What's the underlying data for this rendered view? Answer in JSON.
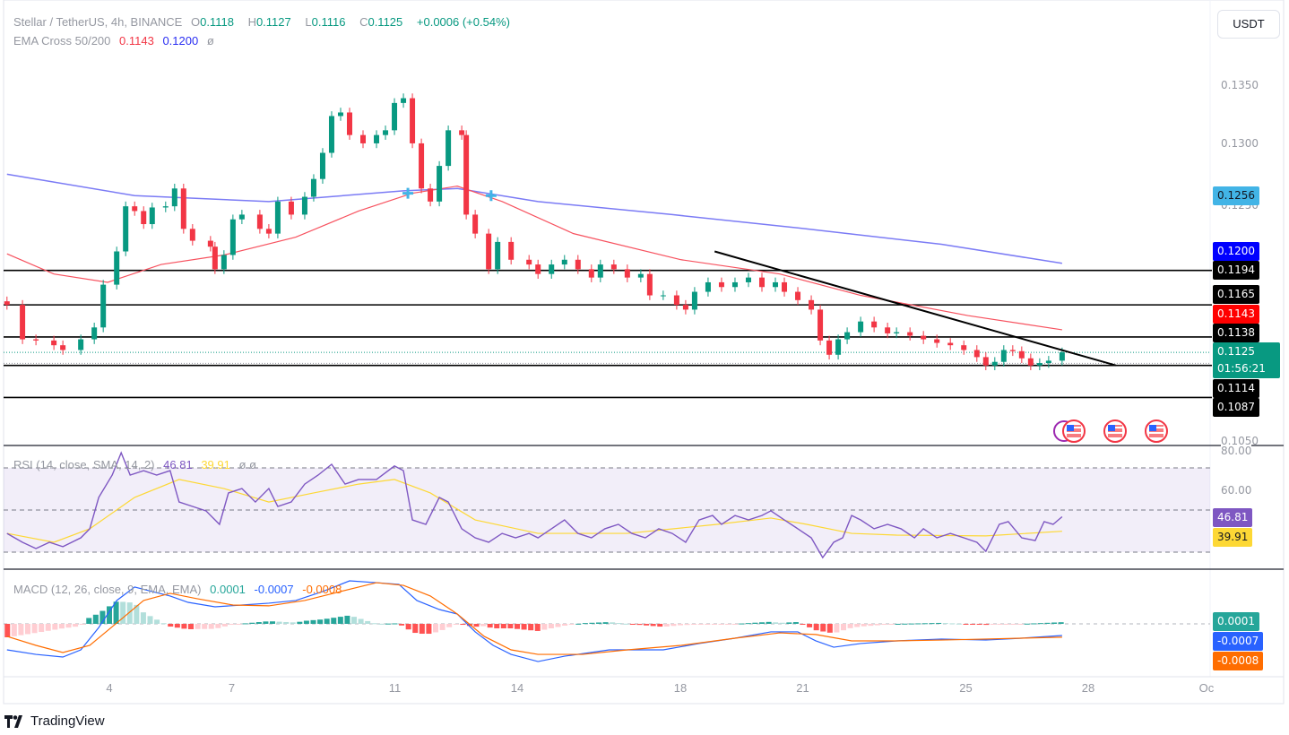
{
  "header": {
    "symbol": "Stellar / TetherUS, 4h, BINANCE",
    "o_label": "O",
    "o": "0.1118",
    "h_label": "H",
    "h": "0.1127",
    "l_label": "L",
    "l": "0.1116",
    "c_label": "C",
    "c": "0.1125",
    "change": "+0.0006 (+0.54%)"
  },
  "ema_legend": {
    "label": "EMA Cross 50/200",
    "ema50": "0.1143",
    "ema200": "0.1200",
    "extra": "ø"
  },
  "rsi_legend": {
    "label": "RSI (14, close, SMA, 14, 2)",
    "rsi": "46.81",
    "sma": "39.91",
    "extra": "ø ø"
  },
  "macd_legend": {
    "label": "MACD (12, 26, close, 9, EMA, EMA)",
    "hist": "0.0001",
    "macd": "-0.0007",
    "signal": "-0.0008"
  },
  "currency_button": "USDT",
  "footer": {
    "brand": "TradingView"
  },
  "price_axis": [
    "0.1350",
    "0.1300",
    "0.1250",
    "0.1050"
  ],
  "rsi_axis": [
    "80.00",
    "60.00"
  ],
  "time_axis": [
    {
      "label": "4",
      "day": 4
    },
    {
      "label": "7",
      "day": 7
    },
    {
      "label": "11",
      "day": 11
    },
    {
      "label": "14",
      "day": 14
    },
    {
      "label": "18",
      "day": 18
    },
    {
      "label": "21",
      "day": 21
    },
    {
      "label": "25",
      "day": 25
    },
    {
      "label": "28",
      "day": 28
    },
    {
      "label": "Oc",
      "day": 30.9
    }
  ],
  "badges": {
    "crosshair": "0.1256",
    "ema200": "0.1200",
    "l1": "0.1194",
    "l2": "0.1165",
    "ema50": "0.1143",
    "l3": "0.1138",
    "last": "0.1125",
    "countdown": "01:56:21",
    "l4": "0.1114",
    "l5": "0.1087",
    "rsi": "46.81",
    "rsi_sma": "39.91",
    "hist": "0.0001",
    "macd": "-0.0007",
    "signal": "-0.0008"
  },
  "colors": {
    "up": "#089981",
    "down": "#f23645",
    "ema50": "#f7525f",
    "ema200": "#7b7bf5",
    "rsi": "#7e57c2",
    "rsi_sma": "#fdd835",
    "macd": "#2962ff",
    "signal": "#ff6d00",
    "crosshair": "#42b4e6"
  },
  "icons": [
    "us-flag-event-icon",
    "us-flag-event-icon",
    "us-flag-event-icon",
    "earnings-event-icon"
  ],
  "chart_data": {
    "type": "candlestick",
    "interval": "4h",
    "x_unit": "day of month",
    "ylim": [
      0.1035,
      0.1375
    ],
    "closes": [
      [
        1.49,
        0.1165
      ],
      [
        1.87,
        0.1136
      ],
      [
        2.2,
        0.1135
      ],
      [
        2.64,
        0.1131
      ],
      [
        2.86,
        0.1127
      ],
      [
        3.3,
        0.1136
      ],
      [
        3.63,
        0.1146
      ],
      [
        3.85,
        0.1182
      ],
      [
        4.18,
        0.121
      ],
      [
        4.4,
        0.1248
      ],
      [
        4.62,
        0.1244
      ],
      [
        4.84,
        0.1233
      ],
      [
        5.05,
        0.1247
      ],
      [
        5.38,
        0.1248
      ],
      [
        5.6,
        0.1263
      ],
      [
        5.82,
        0.1229
      ],
      [
        6.04,
        0.1219
      ],
      [
        6.48,
        0.1214
      ],
      [
        6.59,
        0.1195
      ],
      [
        6.81,
        0.1207
      ],
      [
        7.03,
        0.1237
      ],
      [
        7.25,
        0.1241
      ],
      [
        7.69,
        0.1229
      ],
      [
        7.91,
        0.1225
      ],
      [
        8.13,
        0.1252
      ],
      [
        8.46,
        0.1241
      ],
      [
        8.79,
        0.1256
      ],
      [
        9.01,
        0.1271
      ],
      [
        9.23,
        0.1293
      ],
      [
        9.45,
        0.1324
      ],
      [
        9.67,
        0.1327
      ],
      [
        9.89,
        0.1308
      ],
      [
        10.22,
        0.1301
      ],
      [
        10.55,
        0.1308
      ],
      [
        10.77,
        0.1312
      ],
      [
        10.99,
        0.1335
      ],
      [
        11.21,
        0.1339
      ],
      [
        11.43,
        0.1301
      ],
      [
        11.65,
        0.1263
      ],
      [
        11.87,
        0.1252
      ],
      [
        12.09,
        0.1282
      ],
      [
        12.31,
        0.1312
      ],
      [
        12.64,
        0.1308
      ],
      [
        12.75,
        0.1241
      ],
      [
        12.97,
        0.1225
      ],
      [
        13.3,
        0.1195
      ],
      [
        13.52,
        0.1218
      ],
      [
        13.85,
        0.1203
      ],
      [
        14.29,
        0.1199
      ],
      [
        14.51,
        0.1191
      ],
      [
        14.84,
        0.1199
      ],
      [
        15.16,
        0.1203
      ],
      [
        15.49,
        0.1195
      ],
      [
        15.82,
        0.1188
      ],
      [
        16.04,
        0.1199
      ],
      [
        16.37,
        0.1195
      ],
      [
        16.7,
        0.1188
      ],
      [
        17.03,
        0.1191
      ],
      [
        17.25,
        0.1173
      ],
      [
        17.58,
        0.1173
      ],
      [
        17.91,
        0.1165
      ],
      [
        18.13,
        0.1161
      ],
      [
        18.35,
        0.1176
      ],
      [
        18.68,
        0.1184
      ],
      [
        19.01,
        0.118
      ],
      [
        19.34,
        0.1184
      ],
      [
        19.67,
        0.1188
      ],
      [
        20,
        0.118
      ],
      [
        20.33,
        0.1184
      ],
      [
        20.55,
        0.1176
      ],
      [
        20.88,
        0.1169
      ],
      [
        21.21,
        0.1161
      ],
      [
        21.43,
        0.1135
      ],
      [
        21.65,
        0.1123
      ],
      [
        21.87,
        0.1136
      ],
      [
        22.09,
        0.1142
      ],
      [
        22.42,
        0.1151
      ],
      [
        22.75,
        0.1146
      ],
      [
        23.08,
        0.1141
      ],
      [
        23.3,
        0.1142
      ],
      [
        23.63,
        0.1139
      ],
      [
        23.96,
        0.1136
      ],
      [
        24.29,
        0.1133
      ],
      [
        24.62,
        0.1131
      ],
      [
        24.95,
        0.1127
      ],
      [
        25.27,
        0.1121
      ],
      [
        25.49,
        0.1114
      ],
      [
        25.71,
        0.1117
      ],
      [
        25.93,
        0.1127
      ],
      [
        26.15,
        0.1126
      ],
      [
        26.37,
        0.112
      ],
      [
        26.59,
        0.1114
      ],
      [
        26.81,
        0.1116
      ],
      [
        27.03,
        0.1118
      ],
      [
        27.36,
        0.1125
      ]
    ],
    "ema50": [
      [
        1.49,
        0.1208
      ],
      [
        2.64,
        0.1191
      ],
      [
        3.96,
        0.1184
      ],
      [
        5.27,
        0.1199
      ],
      [
        6.81,
        0.1207
      ],
      [
        8.57,
        0.1222
      ],
      [
        10.11,
        0.1244
      ],
      [
        11.43,
        0.1259
      ],
      [
        12.53,
        0.1265
      ],
      [
        13.63,
        0.1252
      ],
      [
        15.38,
        0.1225
      ],
      [
        18.02,
        0.1203
      ],
      [
        20.44,
        0.1191
      ],
      [
        22.42,
        0.1173
      ],
      [
        25.05,
        0.1156
      ],
      [
        27.36,
        0.1144
      ]
    ],
    "ema200": [
      [
        1.49,
        0.1275
      ],
      [
        4.62,
        0.1257
      ],
      [
        7.91,
        0.1252
      ],
      [
        11.21,
        0.1261
      ],
      [
        12.53,
        0.1263
      ],
      [
        14.51,
        0.1252
      ],
      [
        17.8,
        0.1241
      ],
      [
        21.1,
        0.1229
      ],
      [
        24.4,
        0.1216
      ],
      [
        27.36,
        0.12
      ]
    ],
    "cross_markers": [
      [
        11.32,
        0.1259
      ],
      [
        13.36,
        0.1257
      ]
    ],
    "horizontal_levels": [
      0.1194,
      0.1165,
      0.1138,
      0.1114,
      0.1087
    ],
    "trendline": [
      [
        18.84,
        0.121
      ],
      [
        28.68,
        0.1114
      ]
    ],
    "rsi": {
      "ylim": [
        20,
        82
      ],
      "bands": [
        70,
        50,
        30
      ],
      "values": [
        [
          1.49,
          38.9
        ],
        [
          1.87,
          34.7
        ],
        [
          2.2,
          31.7
        ],
        [
          2.53,
          34.7
        ],
        [
          2.86,
          32.6
        ],
        [
          3.3,
          36.8
        ],
        [
          3.52,
          41.1
        ],
        [
          3.74,
          56
        ],
        [
          4.07,
          66.6
        ],
        [
          4.29,
          77.2
        ],
        [
          4.51,
          66.6
        ],
        [
          4.84,
          68.7
        ],
        [
          5.16,
          66.6
        ],
        [
          5.49,
          68.7
        ],
        [
          5.71,
          53.8
        ],
        [
          6.04,
          51.7
        ],
        [
          6.37,
          49.6
        ],
        [
          6.7,
          43.2
        ],
        [
          6.92,
          58.1
        ],
        [
          7.25,
          60.2
        ],
        [
          7.58,
          53.8
        ],
        [
          7.91,
          60.2
        ],
        [
          8.13,
          51.7
        ],
        [
          8.46,
          53.8
        ],
        [
          8.79,
          62.3
        ],
        [
          9.12,
          66.6
        ],
        [
          9.45,
          71.7
        ],
        [
          9.78,
          62.3
        ],
        [
          10.11,
          64.5
        ],
        [
          10.55,
          64.5
        ],
        [
          10.99,
          70.9
        ],
        [
          11.21,
          68.7
        ],
        [
          11.43,
          45.3
        ],
        [
          11.76,
          43.2
        ],
        [
          12.09,
          56
        ],
        [
          12.31,
          53.8
        ],
        [
          12.64,
          41.1
        ],
        [
          12.97,
          36.8
        ],
        [
          13.3,
          34.7
        ],
        [
          13.63,
          38.9
        ],
        [
          13.96,
          36.8
        ],
        [
          14.29,
          38.9
        ],
        [
          14.51,
          36.8
        ],
        [
          14.84,
          41.1
        ],
        [
          15.16,
          45.3
        ],
        [
          15.49,
          38.9
        ],
        [
          15.82,
          36.8
        ],
        [
          16.15,
          41.1
        ],
        [
          16.48,
          43.2
        ],
        [
          16.81,
          38.9
        ],
        [
          17.14,
          36.8
        ],
        [
          17.47,
          41.1
        ],
        [
          17.8,
          38.9
        ],
        [
          18.13,
          34.7
        ],
        [
          18.46,
          45.3
        ],
        [
          18.79,
          47.4
        ],
        [
          19.01,
          43.2
        ],
        [
          19.34,
          47.4
        ],
        [
          19.67,
          45.3
        ],
        [
          20,
          47.4
        ],
        [
          20.22,
          49.6
        ],
        [
          20.55,
          45.3
        ],
        [
          20.88,
          41.1
        ],
        [
          21.21,
          36.8
        ],
        [
          21.49,
          27.4
        ],
        [
          21.76,
          34.7
        ],
        [
          21.98,
          36.8
        ],
        [
          22.2,
          47.4
        ],
        [
          22.42,
          45.3
        ],
        [
          22.75,
          41.1
        ],
        [
          23.08,
          43.2
        ],
        [
          23.41,
          41.1
        ],
        [
          23.74,
          36.8
        ],
        [
          23.96,
          41.1
        ],
        [
          24.29,
          36.8
        ],
        [
          24.62,
          38.9
        ],
        [
          24.95,
          36.8
        ],
        [
          25.27,
          34.7
        ],
        [
          25.49,
          30.4
        ],
        [
          25.82,
          43.2
        ],
        [
          26.04,
          44.5
        ],
        [
          26.37,
          36.8
        ],
        [
          26.7,
          35.5
        ],
        [
          26.92,
          44.5
        ],
        [
          27.14,
          43.2
        ],
        [
          27.36,
          46.81
        ]
      ],
      "sma": [
        [
          1.49,
          38.9
        ],
        [
          2.64,
          34.7
        ],
        [
          3.52,
          41.1
        ],
        [
          4.62,
          56
        ],
        [
          5.71,
          64.5
        ],
        [
          6.81,
          60.2
        ],
        [
          7.91,
          53.8
        ],
        [
          9.01,
          58.1
        ],
        [
          10.11,
          62.3
        ],
        [
          10.99,
          64.5
        ],
        [
          11.87,
          58.1
        ],
        [
          12.97,
          45.3
        ],
        [
          14.51,
          38.9
        ],
        [
          16.7,
          38.9
        ],
        [
          18.9,
          43.2
        ],
        [
          20.22,
          46.2
        ],
        [
          21.1,
          43.2
        ],
        [
          22.2,
          38.9
        ],
        [
          23.3,
          38.1
        ],
        [
          25.49,
          37.7
        ],
        [
          27.36,
          39.91
        ]
      ]
    },
    "macd": {
      "ylim": [
        -0.0033,
        0.0033
      ],
      "macd": [
        [
          1.49,
          -0.00156
        ],
        [
          2.2,
          -0.00183
        ],
        [
          2.86,
          -0.00199
        ],
        [
          3.3,
          -0.00156
        ],
        [
          3.74,
          -0.00022
        ],
        [
          4.18,
          0.0014
        ],
        [
          4.62,
          0.00221
        ],
        [
          5.05,
          0.00194
        ],
        [
          5.49,
          0.00167
        ],
        [
          5.93,
          0.00129
        ],
        [
          6.59,
          0.00102
        ],
        [
          7.25,
          0.00113
        ],
        [
          7.91,
          0.00124
        ],
        [
          8.57,
          0.0014
        ],
        [
          9.23,
          0.00194
        ],
        [
          9.89,
          0.00258
        ],
        [
          10.55,
          0.00247
        ],
        [
          11.1,
          0.00237
        ],
        [
          11.54,
          0.0014
        ],
        [
          12.09,
          0.00086
        ],
        [
          12.53,
          0.00059
        ],
        [
          12.97,
          -0.00048
        ],
        [
          13.41,
          -0.00129
        ],
        [
          13.85,
          -0.00183
        ],
        [
          14.51,
          -0.00226
        ],
        [
          15.16,
          -0.00194
        ],
        [
          16.26,
          -0.00156
        ],
        [
          17.58,
          -0.00156
        ],
        [
          18.46,
          -0.00118
        ],
        [
          19.34,
          -0.00086
        ],
        [
          20.22,
          -0.00048
        ],
        [
          20.88,
          -0.00048
        ],
        [
          21.32,
          -0.00102
        ],
        [
          21.76,
          -0.0014
        ],
        [
          22.42,
          -0.00118
        ],
        [
          23.3,
          -0.00102
        ],
        [
          24.4,
          -0.00091
        ],
        [
          25.49,
          -0.00097
        ],
        [
          26.37,
          -0.00086
        ],
        [
          27.36,
          -0.0007
        ]
      ],
      "signal": [
        [
          1.49,
          -0.00075
        ],
        [
          2.2,
          -0.00129
        ],
        [
          2.86,
          -0.00172
        ],
        [
          3.52,
          -0.00129
        ],
        [
          4.18,
          5e-05
        ],
        [
          4.84,
          0.0014
        ],
        [
          5.49,
          0.00183
        ],
        [
          6.15,
          0.00151
        ],
        [
          7.03,
          0.00113
        ],
        [
          7.91,
          0.00108
        ],
        [
          8.79,
          0.0014
        ],
        [
          9.67,
          0.00194
        ],
        [
          10.55,
          0.00247
        ],
        [
          11.21,
          0.00231
        ],
        [
          11.87,
          0.00167
        ],
        [
          12.53,
          0.00059
        ],
        [
          13.19,
          -0.00075
        ],
        [
          13.85,
          -0.00156
        ],
        [
          14.51,
          -0.00183
        ],
        [
          15.6,
          -0.00183
        ],
        [
          16.7,
          -0.00156
        ],
        [
          18.02,
          -0.00129
        ],
        [
          19.34,
          -0.00086
        ],
        [
          20.44,
          -0.00054
        ],
        [
          21.32,
          -0.00064
        ],
        [
          22.2,
          -0.00102
        ],
        [
          23.3,
          -0.00102
        ],
        [
          24.4,
          -0.00097
        ],
        [
          25.49,
          -0.00091
        ],
        [
          27.36,
          -0.0008
        ]
      ]
    }
  }
}
